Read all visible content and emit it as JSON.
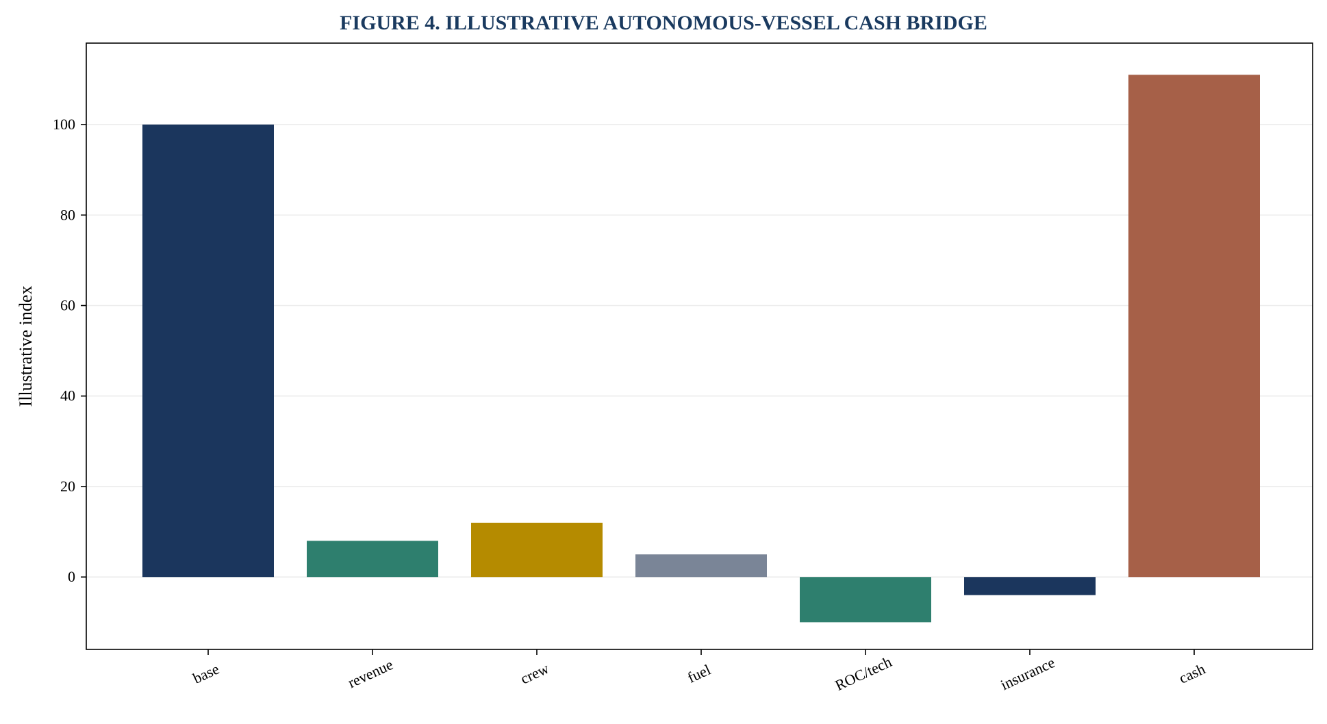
{
  "chart_data": {
    "type": "bar",
    "title": "FIGURE 4. ILLUSTRATIVE AUTONOMOUS-VESSEL CASH BRIDGE",
    "xlabel": "",
    "ylabel": "Illustrative index",
    "categories": [
      "base",
      "revenue",
      "crew",
      "fuel",
      "ROC/tech",
      "insurance",
      "cash"
    ],
    "values": [
      100,
      8,
      12,
      5,
      -10,
      -4,
      111
    ],
    "colors": [
      "#1b365d",
      "#2e7f6e",
      "#b58b00",
      "#7a8597",
      "#2e7f6e",
      "#1b365d",
      "#a66048"
    ],
    "ylim": [
      -16,
      118
    ],
    "yticks": [
      0,
      20,
      40,
      60,
      80,
      100
    ],
    "grid": true,
    "legend": "none",
    "x_tick_rotation": "rotated"
  }
}
